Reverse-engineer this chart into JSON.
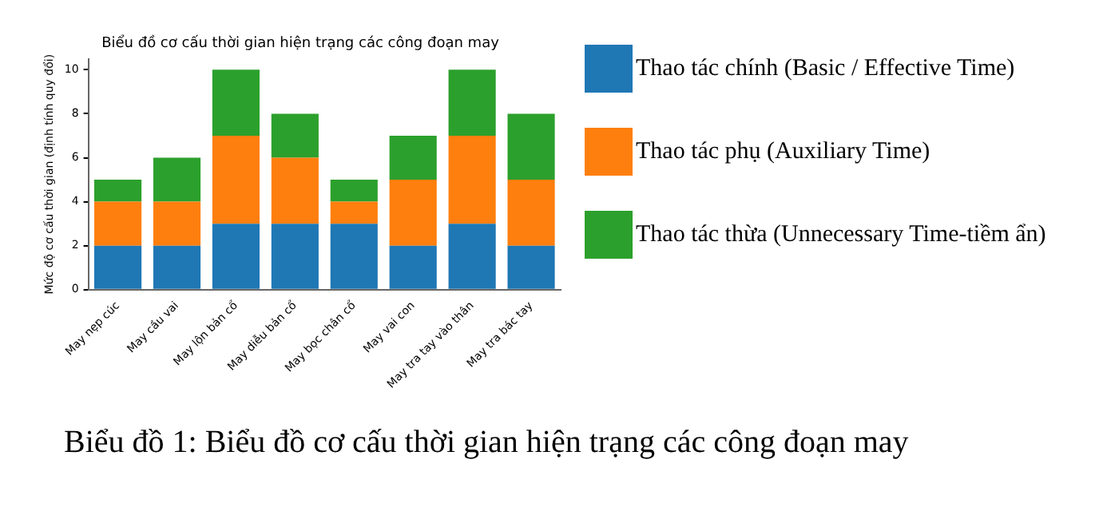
{
  "chart_data": {
    "type": "bar",
    "title": "Biểu đồ cơ cấu thời gian hiện trạng các công đoạn may",
    "ylabel": "Mức độ cơ cấu thời gian (định tính quy đổi)",
    "categories": [
      "May nẹp cúc",
      "May cầu vai",
      "May lộn bản cổ",
      "May diễu bản cổ",
      "May bọc chân cổ",
      "May vai con",
      "May tra tay vào thân",
      "May tra bác tay"
    ],
    "series": [
      {
        "name": "Thao tác chính (Basic / Effective Time)",
        "color": "#1f77b4",
        "values": [
          2,
          2,
          3,
          3,
          3,
          2,
          3,
          2
        ]
      },
      {
        "name": "Thao tác phụ (Auxiliary Time)",
        "color": "#ff7f0e",
        "values": [
          2,
          2,
          4,
          3,
          1,
          3,
          4,
          3
        ]
      },
      {
        "name": "Thao tác thừa (Unnecessary Time-tiềm ẩn)",
        "color": "#2ca02c",
        "values": [
          1,
          2,
          3,
          2,
          1,
          2,
          3,
          3
        ]
      }
    ],
    "stacked": true,
    "ylim": [
      0,
      10.5
    ],
    "yticks": [
      0,
      2,
      4,
      6,
      8,
      10
    ],
    "grid": false,
    "legend": "right",
    "annotations": [
      "Biểu đồ 1: Biểu đồ cơ cấu thời gian hiện trạng các công đoạn may"
    ]
  }
}
